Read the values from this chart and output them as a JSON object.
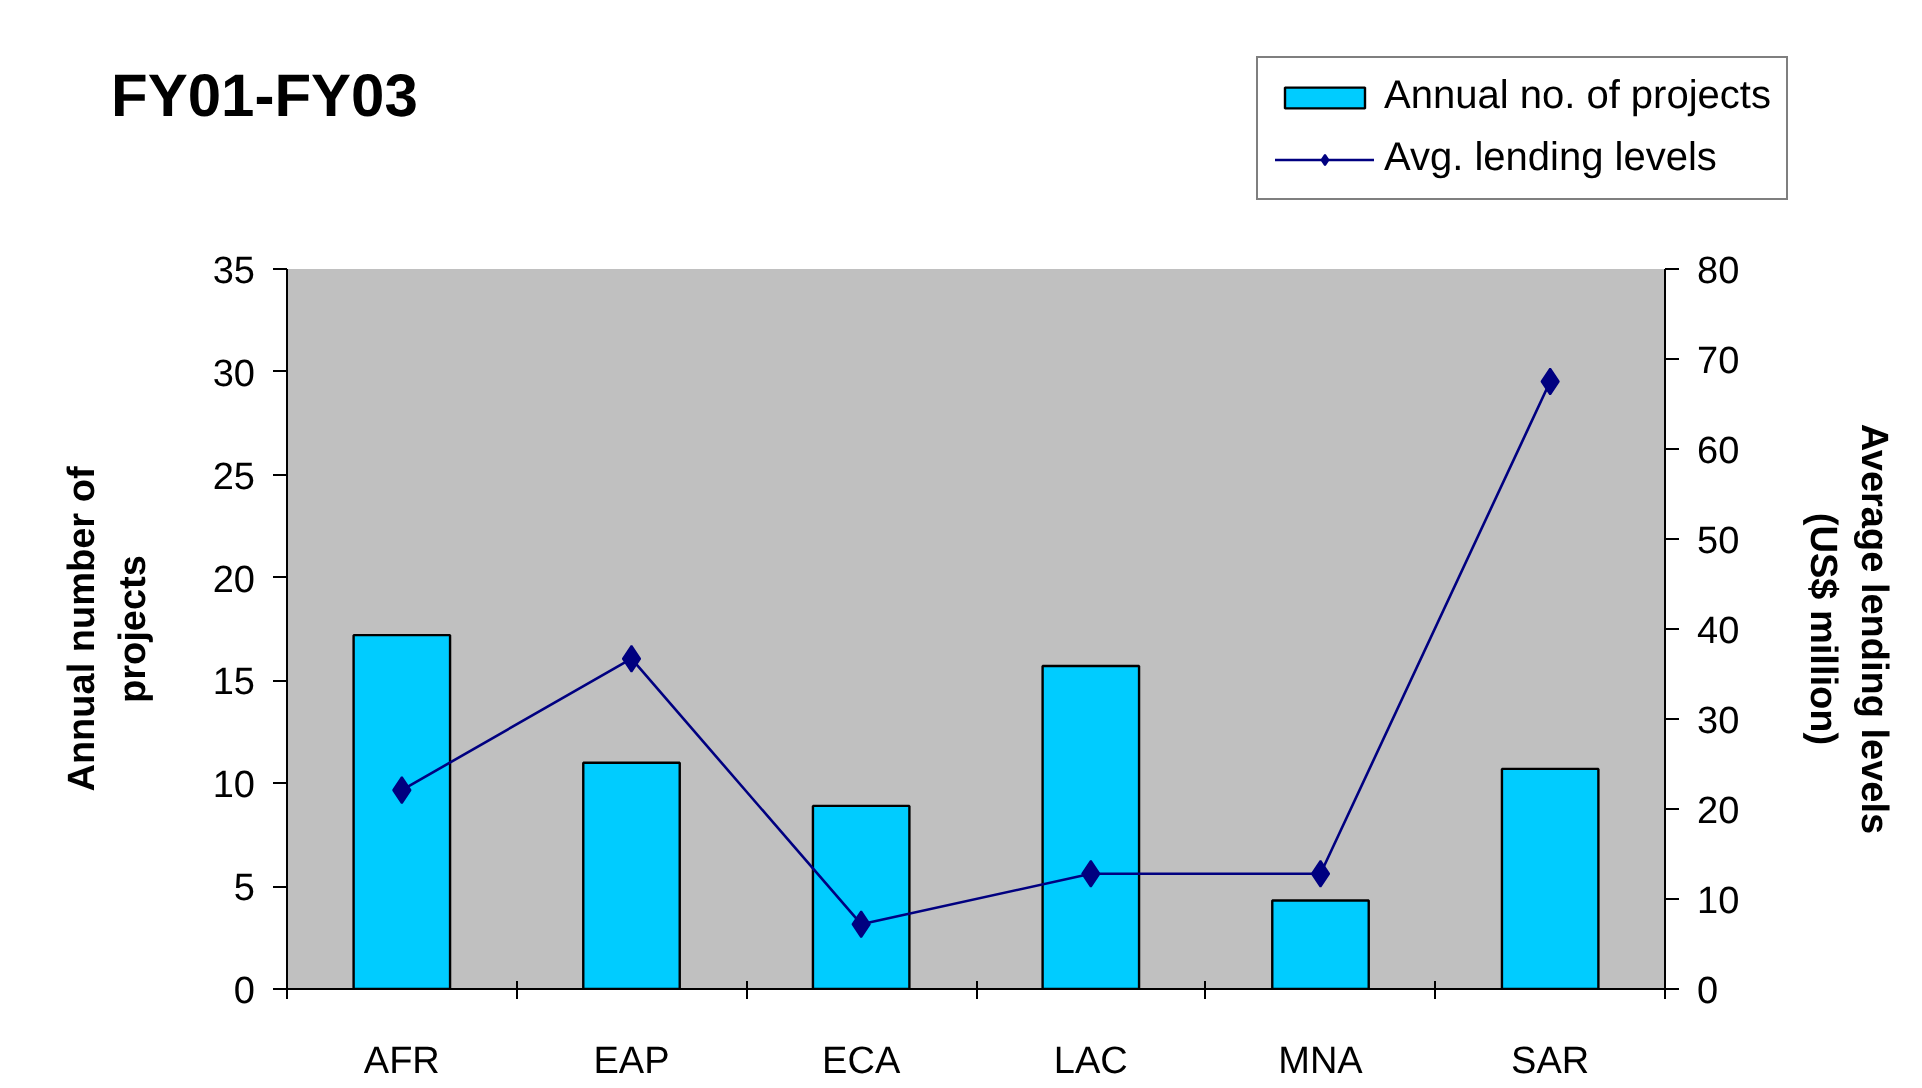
{
  "chart_data": {
    "type": "bar",
    "title": "FY01-FY03",
    "categories": [
      "AFR",
      "EAP",
      "ECA",
      "LAC",
      "MNA",
      "SAR"
    ],
    "ylabel": "Annual number of projects",
    "y2label": "Average lending levels (US$ million)",
    "ylim": [
      0,
      35
    ],
    "yticks": [
      0,
      5,
      10,
      15,
      20,
      25,
      30,
      35
    ],
    "y2lim": [
      0,
      80
    ],
    "y2ticks": [
      0,
      10,
      20,
      30,
      40,
      50,
      60,
      70,
      80
    ],
    "series": [
      {
        "name": "Annual no. of projects",
        "color": "#00ccff",
        "values": [
          17.2,
          11.0,
          8.9,
          15.7,
          4.3,
          10.7
        ]
      },
      {
        "name": "Avg. lending levels",
        "type": "line",
        "axis": "y2",
        "color": "#000080",
        "marker": "diamond",
        "values": [
          22.1,
          36.7,
          7.2,
          12.8,
          12.8,
          67.5
        ]
      }
    ],
    "legend": "top right",
    "grid": false
  }
}
